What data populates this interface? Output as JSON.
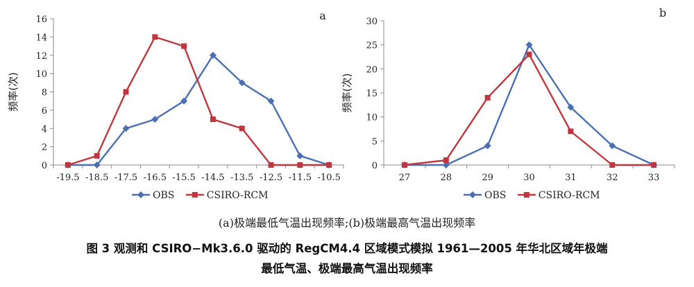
{
  "colors": {
    "obs": "#4a6fb3",
    "rcm": "#c0363d",
    "axis": "#8a8a8a"
  },
  "chart_data": [
    {
      "type": "line",
      "panel_label": "a",
      "ylabel": "频率(次)",
      "xlabel": "",
      "categories": [
        "-19.5",
        "-18.5",
        "-17.5",
        "-16.5",
        "-15.5",
        "-14.5",
        "-13.5",
        "-12.5",
        "-11.5",
        "-10.5"
      ],
      "ylim": [
        0,
        16
      ],
      "yticks": [
        0,
        2,
        4,
        6,
        8,
        10,
        12,
        14,
        16
      ],
      "grid": false,
      "legend_position": "bottom",
      "series": [
        {
          "name": "OBS",
          "color": "#4a6fb3",
          "marker": "diamond",
          "values": [
            0,
            0,
            4,
            5,
            7,
            12,
            9,
            7,
            1,
            0
          ]
        },
        {
          "name": "CSIRO-RCM",
          "color": "#c0363d",
          "marker": "square",
          "values": [
            0,
            1,
            8,
            14,
            13,
            5,
            4,
            0,
            0,
            0
          ]
        }
      ]
    },
    {
      "type": "line",
      "panel_label": "b",
      "ylabel": "频率(次)",
      "xlabel": "",
      "categories": [
        "27",
        "28",
        "29",
        "30",
        "31",
        "32",
        "33"
      ],
      "ylim": [
        0,
        30
      ],
      "yticks": [
        0,
        5,
        10,
        15,
        20,
        25,
        30
      ],
      "grid": false,
      "legend_position": "bottom",
      "series": [
        {
          "name": "OBS",
          "color": "#4a6fb3",
          "marker": "diamond",
          "values": [
            0,
            0,
            4,
            25,
            12,
            4,
            0
          ]
        },
        {
          "name": "CSIRO-RCM",
          "color": "#c0363d",
          "marker": "square",
          "values": [
            0,
            1,
            14,
            23,
            7,
            0,
            0
          ]
        }
      ]
    }
  ],
  "subcaption": "(a)极端最低气温出现频率;(b)极端最高气温出现频率",
  "caption_line1": "图 3  观测和 CSIRO−Mk3.6.0 驱动的 RegCM4.4 区域模式模拟 1961—2005 年华北区域年极端",
  "caption_line2": "最低气温、极端最高气温出现频率"
}
